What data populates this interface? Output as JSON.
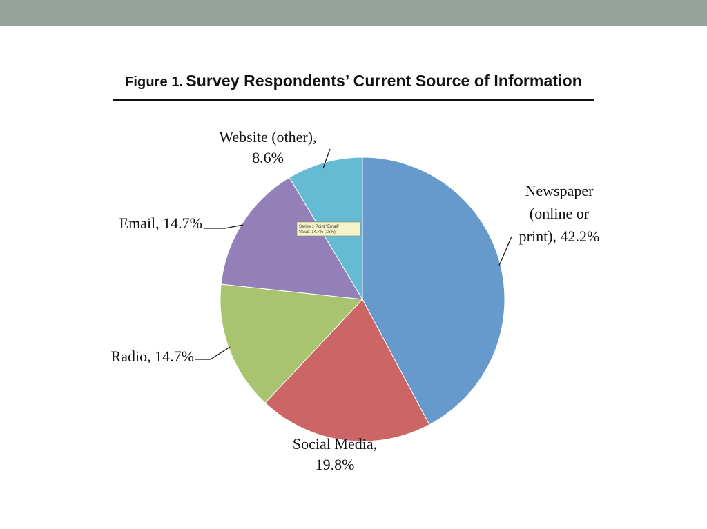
{
  "figure": {
    "label": "Figure 1.",
    "title": "Survey Respondents’ Current Source of Information"
  },
  "chart_data": {
    "type": "pie",
    "title": "Survey Respondents’ Current Source of Information",
    "slices": [
      {
        "name": "Newspaper (online or print)",
        "value": 42.2,
        "color": "#6699cc",
        "label_lines": [
          "Newspaper",
          "(online or",
          "print), 42.2%"
        ]
      },
      {
        "name": "Social Media",
        "value": 19.8,
        "color": "#cc6666",
        "label_lines": [
          "Social Media,",
          "19.8%"
        ]
      },
      {
        "name": "Radio",
        "value": 14.7,
        "color": "#a8c46e",
        "label_lines": [
          "Radio, 14.7%"
        ]
      },
      {
        "name": "Email",
        "value": 14.7,
        "color": "#9480b8",
        "label_lines": [
          "Email, 14.7%"
        ]
      },
      {
        "name": "Website (other)",
        "value": 8.6,
        "color": "#66bbd4",
        "label_lines": [
          "Website (other),",
          "8.6%"
        ]
      }
    ],
    "start_angle_deg": 0,
    "direction": "clockwise",
    "tooltip": {
      "lines": [
        "Series 1 Point \"Email\"",
        "Value: 14.7% (15%)"
      ]
    }
  },
  "colors": {
    "top_bar": "#95a39a",
    "tooltip_bg": "#f4f4c8"
  }
}
